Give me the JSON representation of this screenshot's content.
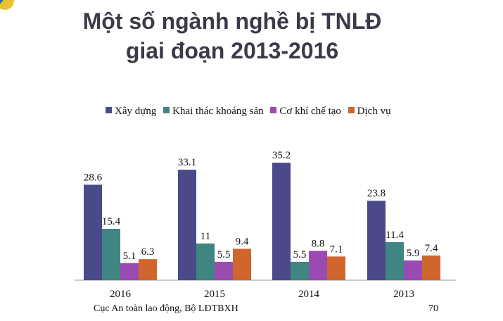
{
  "slide": {
    "title_line1": "Một số ngành nghề bị TNLĐ",
    "title_line2": "giai đoạn 2013-2016",
    "footer_source": "Cục An toàn lao động, Bộ LĐTBXH",
    "page_number": "70"
  },
  "chart_data": {
    "type": "bar",
    "categories": [
      "2016",
      "2015",
      "2014",
      "2013"
    ],
    "series": [
      {
        "name": "Xây dựng",
        "color": "#4a4a8a",
        "values": [
          28.6,
          33.1,
          35.2,
          23.8
        ]
      },
      {
        "name": "Khai thác khoáng sản",
        "color": "#3f8682",
        "values": [
          15.4,
          11,
          5.5,
          11.4
        ]
      },
      {
        "name": "Cơ khí chế tạo",
        "color": "#9a4bb2",
        "values": [
          5.1,
          5.5,
          8.8,
          5.9
        ]
      },
      {
        "name": "Dịch vụ",
        "color": "#d0662e",
        "values": [
          6.3,
          9.4,
          7.1,
          7.4
        ]
      }
    ],
    "value_labels": [
      [
        "28.6",
        "33.1",
        "35.2",
        "23.8"
      ],
      [
        "15.4",
        "11",
        "5.5",
        "11.4"
      ],
      [
        "5.1",
        "5.5",
        "8.8",
        "5.9"
      ],
      [
        "6.3",
        "9.4",
        "7.1",
        "7.4"
      ]
    ],
    "legend_position": "top",
    "ylim": [
      0,
      36
    ],
    "grid": false
  }
}
